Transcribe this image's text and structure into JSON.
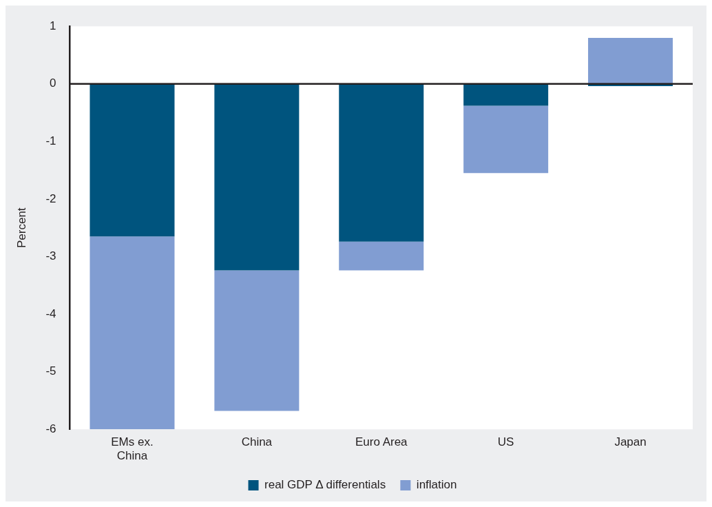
{
  "chart_data": {
    "type": "bar",
    "stacked": true,
    "ylabel": "Percent",
    "categories": [
      "EMs ex. China",
      "China",
      "Euro Area",
      "US",
      "Japan"
    ],
    "series": [
      {
        "name": "real GDP Δ differentials",
        "color": "#00547e",
        "values": [
          -2.65,
          -3.24,
          -2.74,
          -0.38,
          -0.04
        ]
      },
      {
        "name": "inflation",
        "color": "#819dd2",
        "values": [
          -3.35,
          -2.44,
          -0.5,
          -1.17,
          0.8
        ]
      }
    ],
    "ylim": [
      -6,
      1
    ],
    "yticks": [
      -6,
      -5,
      -4,
      -3,
      -2,
      -1,
      0,
      1
    ],
    "legend": "bottom"
  }
}
